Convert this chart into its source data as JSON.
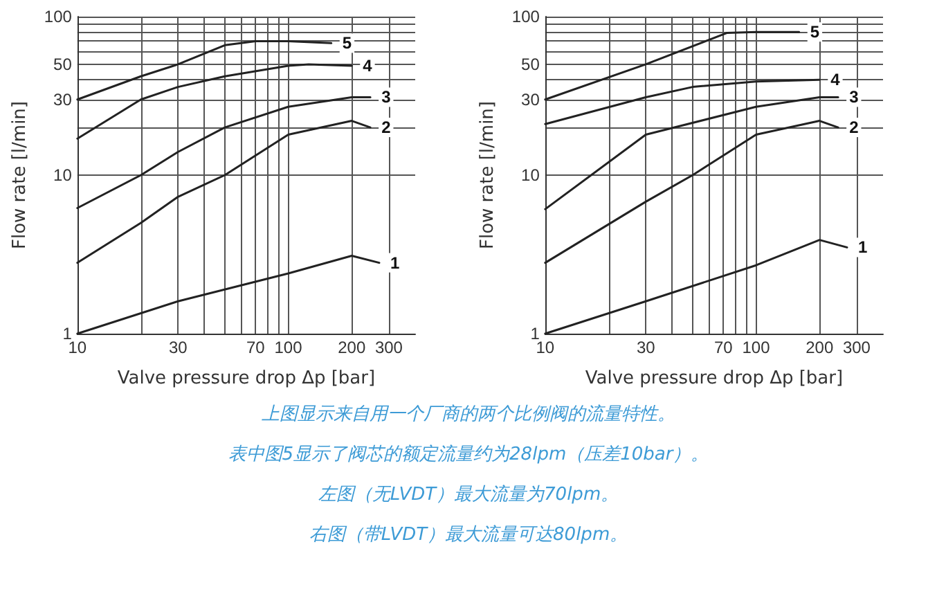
{
  "chart_data": [
    {
      "type": "line",
      "xlabel": "Valve pressure drop Δp [bar]",
      "ylabel": "Flow rate [l/min]",
      "log": "xy",
      "grid": true,
      "legend": false,
      "marker": "none",
      "line_style": "solid",
      "xlim": [
        10,
        400
      ],
      "xticks": [
        10,
        {
          "value": 20,
          "label": null
        },
        30,
        {
          "value": 40,
          "label": null
        },
        {
          "value": 50,
          "label": null
        },
        {
          "value": 60,
          "label": null
        },
        70,
        {
          "value": 80,
          "label": null
        },
        {
          "value": 90,
          "label": null
        },
        100,
        200,
        300
      ],
      "ylim": [
        1,
        100
      ],
      "yticks": [
        1,
        10,
        {
          "value": 20,
          "label": null
        },
        30,
        {
          "value": 40,
          "label": null
        },
        50,
        {
          "value": 60,
          "label": null
        },
        {
          "value": 70,
          "label": null
        },
        {
          "value": 80,
          "label": null
        },
        {
          "value": 90,
          "label": null
        },
        100
      ],
      "series": [
        {
          "name": "1",
          "color": "#222222",
          "x": [
            10,
            30,
            100,
            200,
            270
          ],
          "values": [
            1,
            1.6,
            2.4,
            3.1,
            2.8
          ]
        },
        {
          "name": "2",
          "color": "#222222",
          "x": [
            10,
            20,
            30,
            50,
            100,
            200,
            245
          ],
          "values": [
            2.8,
            5,
            7.3,
            10,
            18,
            22,
            20
          ]
        },
        {
          "name": "3",
          "color": "#222222",
          "x": [
            10,
            20,
            30,
            50,
            100,
            200,
            245
          ],
          "values": [
            6.2,
            10,
            14,
            20,
            27,
            31,
            31
          ]
        },
        {
          "name": "4",
          "color": "#222222",
          "x": [
            10,
            20,
            30,
            50,
            100,
            125,
            200
          ],
          "values": [
            17,
            30,
            36,
            42,
            49,
            50,
            49
          ]
        },
        {
          "name": "5",
          "color": "#222222",
          "x": [
            10,
            20,
            30,
            50,
            70,
            100,
            160
          ],
          "values": [
            30,
            42,
            50,
            66,
            70,
            70,
            68
          ]
        }
      ],
      "annotations": [
        "上图显示来自用一个厂商的两个比例阀的流量特性。",
        "表中图5显示了阀芯的额定流量约为28lpm（压差10bar）。",
        "左图（无LVDT）最大流量为70lpm。",
        "右图（带LVDT）最大流量可达80lpm。"
      ]
    },
    {
      "type": "line",
      "xlabel": "Valve pressure drop Δp [bar]",
      "ylabel": "Flow rate [l/min]",
      "log": "xy",
      "grid": true,
      "legend": false,
      "marker": "none",
      "line_style": "solid",
      "xlim": [
        10,
        400
      ],
      "xticks": [
        10,
        {
          "value": 20,
          "label": null
        },
        30,
        {
          "value": 40,
          "label": null
        },
        {
          "value": 50,
          "label": null
        },
        {
          "value": 60,
          "label": null
        },
        70,
        {
          "value": 80,
          "label": null
        },
        {
          "value": 90,
          "label": null
        },
        100,
        200,
        300
      ],
      "ylim": [
        1,
        100
      ],
      "yticks": [
        1,
        10,
        {
          "value": 20,
          "label": null
        },
        30,
        {
          "value": 40,
          "label": null
        },
        50,
        {
          "value": 60,
          "label": null
        },
        {
          "value": 70,
          "label": null
        },
        {
          "value": 80,
          "label": null
        },
        {
          "value": 90,
          "label": null
        },
        100
      ],
      "series": [
        {
          "name": "1",
          "color": "#222222",
          "x": [
            10,
            30,
            100,
            200,
            270
          ],
          "values": [
            1,
            1.6,
            2.7,
            3.9,
            3.5
          ]
        },
        {
          "name": "2",
          "color": "#222222",
          "x": [
            10,
            30,
            50,
            100,
            200,
            245
          ],
          "values": [
            2.8,
            6.8,
            10,
            18,
            22,
            20
          ]
        },
        {
          "name": "3",
          "color": "#222222",
          "x": [
            10,
            30,
            100,
            200,
            245
          ],
          "values": [
            6.1,
            18,
            27,
            31,
            31
          ]
        },
        {
          "name": "4",
          "color": "#222222",
          "x": [
            10,
            30,
            50,
            100,
            200
          ],
          "values": [
            21,
            31,
            36,
            39,
            40
          ]
        },
        {
          "name": "5",
          "color": "#222222",
          "x": [
            10,
            30,
            73,
            100,
            160
          ],
          "values": [
            30,
            50,
            79,
            80,
            80
          ]
        }
      ]
    }
  ]
}
